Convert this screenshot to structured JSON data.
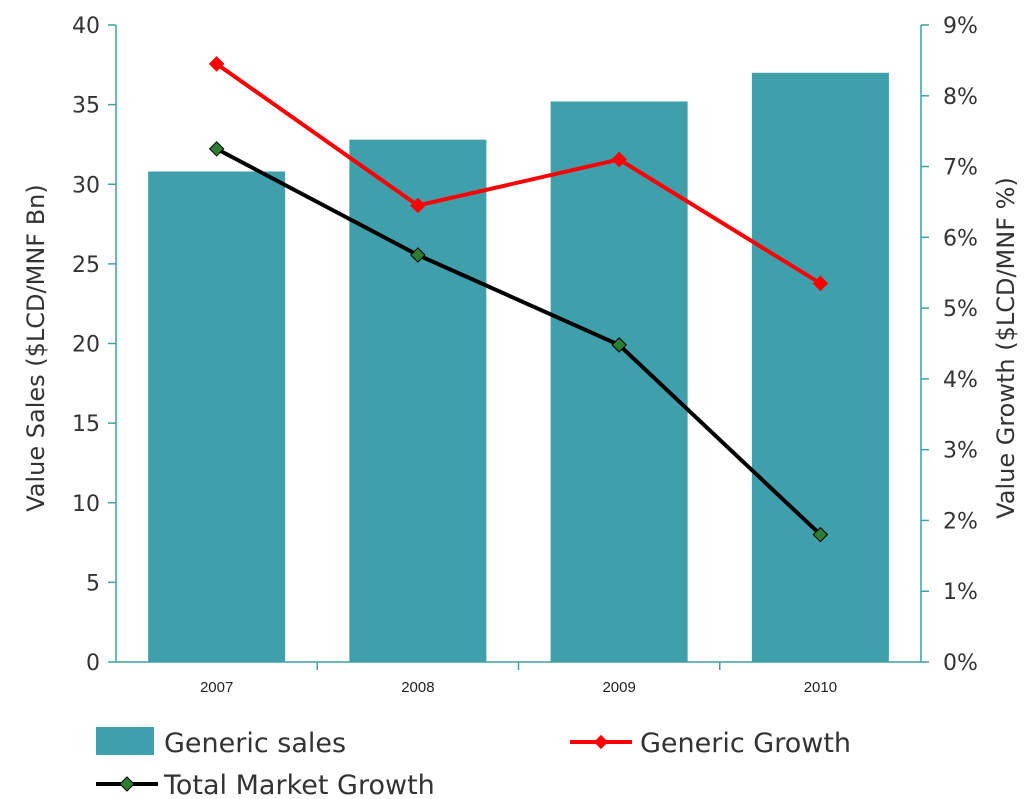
{
  "chart_data": {
    "type": "bar",
    "categories": [
      "2007",
      "2008",
      "2009",
      "2010"
    ],
    "bar_series": {
      "name": "Generic sales",
      "values": [
        30.8,
        32.8,
        35.2,
        37.0
      ],
      "color": "#3f9fab",
      "axis": "left"
    },
    "line_series": [
      {
        "name": "Generic Growth",
        "values": [
          8.45,
          6.45,
          7.1,
          5.35
        ],
        "color": "#ff0000",
        "marker_color": "#ff0000",
        "axis": "right"
      },
      {
        "name": "Total Market Growth",
        "values": [
          7.25,
          5.75,
          4.48,
          1.8
        ],
        "color": "#000000",
        "marker_color": "#2e7d32",
        "axis": "right"
      }
    ],
    "ylabel": "Value Sales ($LCD/MNF Bn)",
    "ylabel_right": "Value Growth ($LCD/MNF %)",
    "ylim": [
      0,
      40
    ],
    "ylim_right": [
      0,
      9
    ],
    "yticks": [
      "0",
      "5",
      "10",
      "15",
      "20",
      "25",
      "30",
      "35",
      "40"
    ],
    "yticks_right": [
      "0%",
      "1%",
      "2%",
      "3%",
      "4%",
      "5%",
      "6%",
      "7%",
      "8%",
      "9%"
    ],
    "axis_color": "#3f9fab",
    "grid": false,
    "legend_position": "bottom"
  }
}
